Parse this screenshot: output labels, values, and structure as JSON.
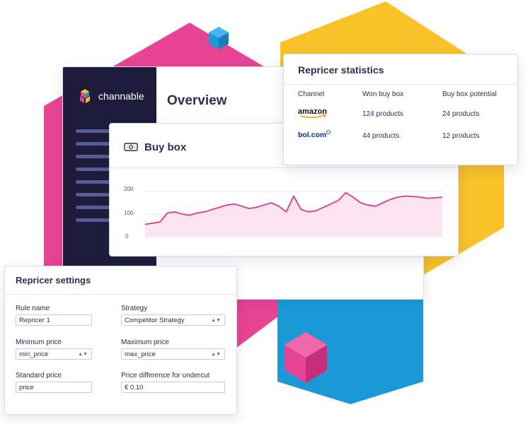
{
  "colors": {
    "pink": "#e84494",
    "yellow": "#f9c22a",
    "blue": "#1c9ad8",
    "sidebar": "#1e1c3a",
    "chart_line": "#d63a88",
    "chart_fill": "#fbe4ef"
  },
  "app": {
    "brand_name": "channable",
    "brand_icon": "channable-cube-logo",
    "page_title": "Overview"
  },
  "buy_box": {
    "icon": "money-icon",
    "title": "Buy box",
    "chart_data": {
      "type": "area",
      "title": "",
      "xlabel": "",
      "ylabel": "",
      "ylim": [
        0,
        200
      ],
      "yticks": [
        "200",
        "100",
        "0"
      ],
      "grid": true,
      "x": [
        0,
        1,
        2,
        3,
        4,
        5,
        6,
        7,
        8,
        9,
        10,
        11,
        12,
        13,
        14,
        15,
        16,
        17,
        18,
        19,
        20,
        21,
        22,
        23,
        24,
        25,
        26,
        27,
        28,
        29,
        30,
        31,
        32,
        33,
        34,
        35,
        36,
        37,
        38,
        39,
        40
      ],
      "series": [
        {
          "values": [
            55,
            60,
            65,
            105,
            110,
            100,
            95,
            105,
            110,
            120,
            130,
            140,
            145,
            135,
            125,
            130,
            140,
            150,
            135,
            110,
            180,
            120,
            110,
            115,
            130,
            145,
            160,
            195,
            175,
            150,
            140,
            135,
            150,
            165,
            175,
            180,
            178,
            175,
            170,
            172,
            175
          ]
        }
      ]
    }
  },
  "stats": {
    "title": "Repricer statistics",
    "headers": [
      "Channel",
      "Won buy box",
      "Buy box potential"
    ],
    "rows": [
      {
        "channel_logo": "amazon-logo",
        "channel": "amazon",
        "won": "124 products",
        "potential": "24 products"
      },
      {
        "channel_logo": "bol-logo",
        "channel": "bol.com",
        "won": "44 products",
        "potential": "12 products"
      }
    ]
  },
  "settings": {
    "title": "Repricer settings",
    "rule_name_label": "Rule name",
    "rule_name_value": "Repricer 1",
    "strategy_label": "Strategy",
    "strategy_value": "Competitor Strategy",
    "min_price_label": "Minimum price",
    "min_price_value": "min_price",
    "max_price_label": "Maximum price",
    "max_price_value": "max_price",
    "standard_price_label": "Standard price",
    "standard_price_value": "price",
    "undercut_label": "Price difference for undercut",
    "undercut_value": "€ 0.10"
  }
}
